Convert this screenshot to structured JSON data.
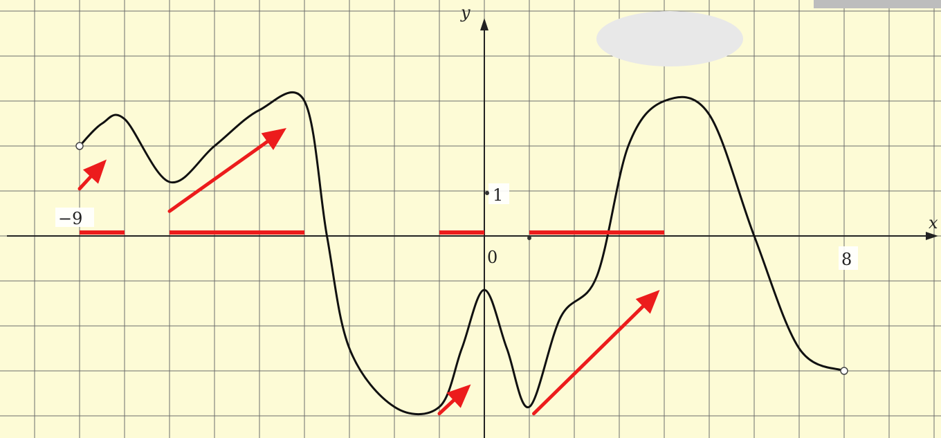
{
  "colors": {
    "background": "#fdfbd6",
    "highlight": "#ec1c1c",
    "curve": "#111111",
    "grid": "#6c6c6c",
    "overlay_ellipse": "#e8e8e8",
    "corner_box": "#bdbdbd"
  },
  "chart_data": {
    "type": "line",
    "title": "",
    "xlabel": "x",
    "ylabel": "y",
    "xlim": [
      -10.5,
      10
    ],
    "ylim": [
      -4.5,
      5
    ],
    "grid": true,
    "labels": {
      "x_min": "−9",
      "x_max": "8",
      "origin": "0",
      "y_unit": "1"
    },
    "series": [
      {
        "x": [
          -9,
          -8.5,
          -8,
          -7,
          -6,
          -5,
          -4,
          -3.5,
          -3,
          -2,
          -1,
          -0.5,
          0,
          0.5,
          1,
          1.7,
          2.5,
          3.2,
          4,
          5,
          6,
          7,
          8
        ],
        "y": [
          2,
          2.5,
          2.6,
          1.2,
          2,
          2.8,
          3,
          0,
          -2.5,
          -3.8,
          -3.8,
          -2.5,
          -1.2,
          -2.5,
          -3.8,
          -1.8,
          -0.9,
          2,
          3,
          2.7,
          0,
          -2.5,
          -3
        ],
        "endpoints_open": true
      }
    ],
    "highlighted_intervals": [
      [
        -9,
        -8
      ],
      [
        -7,
        -4
      ],
      [
        -1,
        0
      ],
      [
        1,
        4
      ]
    ]
  }
}
